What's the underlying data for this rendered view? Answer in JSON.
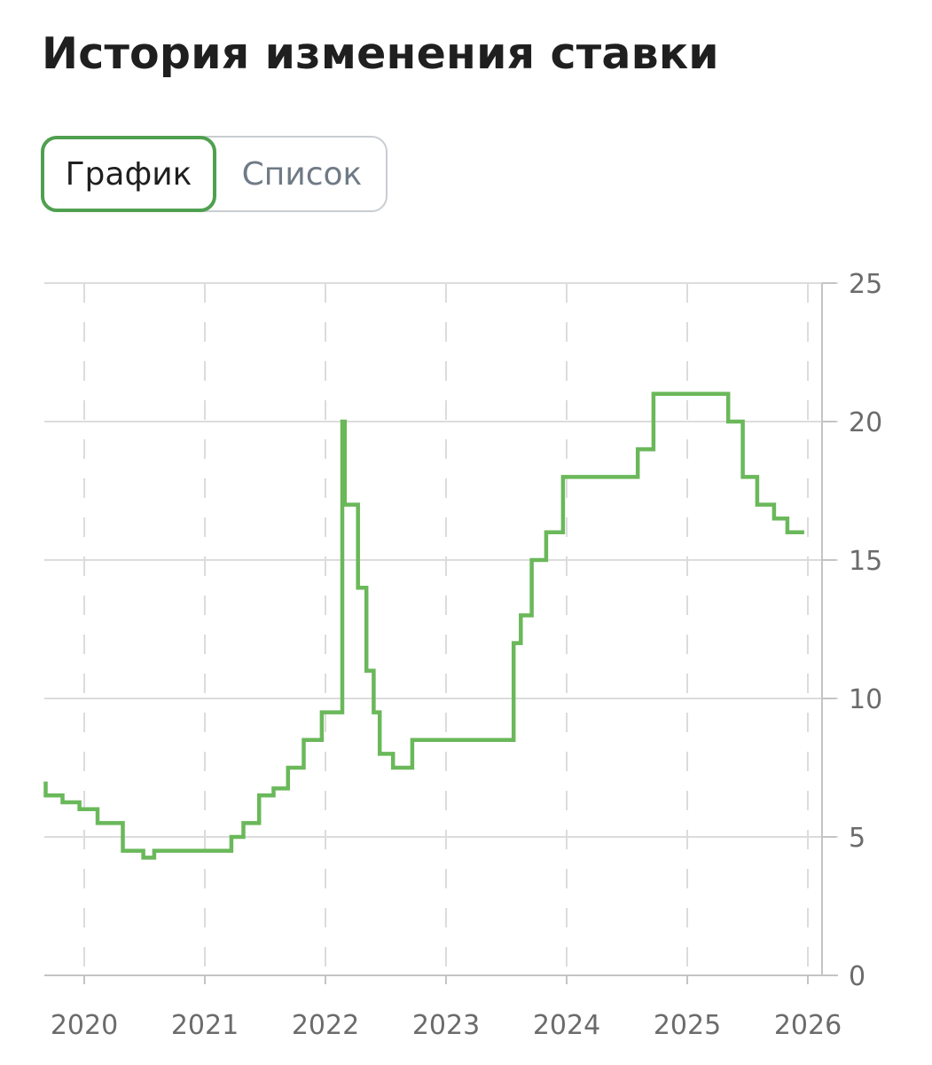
{
  "page": {
    "title": "История изменения ставки"
  },
  "toggle": {
    "options": [
      {
        "label": "График",
        "active": true
      },
      {
        "label": "Список",
        "active": false
      }
    ]
  },
  "colors": {
    "accent": "#4fa04f",
    "line": "#6ab85a",
    "grid": "#dcdcdc",
    "text": "#1f1f1f",
    "muted": "#6f7a86"
  },
  "chart_data": {
    "type": "line",
    "step": true,
    "xlim": [
      2019.68,
      2025.97
    ],
    "ylim": [
      0,
      25
    ],
    "x_ticks": [
      2020,
      2021,
      2022,
      2023,
      2024,
      2025,
      2026
    ],
    "x_tick_labels": [
      "2020",
      "2021",
      "2022",
      "2023",
      "2024",
      "2025",
      "2026"
    ],
    "y_ticks": [
      0,
      5,
      10,
      15,
      20,
      25
    ],
    "y_tick_labels": [
      "0",
      "5",
      "10",
      "15",
      "20",
      "25"
    ],
    "y_axis_side": "right",
    "grid": {
      "horizontal": "solid",
      "vertical": "dashed"
    },
    "series": [
      {
        "points": [
          [
            2019.68,
            7.0
          ],
          [
            2019.68,
            6.5
          ],
          [
            2019.82,
            6.25
          ],
          [
            2019.96,
            6.0
          ],
          [
            2020.11,
            5.5
          ],
          [
            2020.32,
            4.5
          ],
          [
            2020.49,
            4.25
          ],
          [
            2020.58,
            4.5
          ],
          [
            2021.22,
            5.0
          ],
          [
            2021.32,
            5.5
          ],
          [
            2021.45,
            6.5
          ],
          [
            2021.57,
            6.75
          ],
          [
            2021.69,
            7.5
          ],
          [
            2021.82,
            8.5
          ],
          [
            2021.97,
            9.5
          ],
          [
            2022.14,
            20.0
          ],
          [
            2022.16,
            17.0
          ],
          [
            2022.27,
            14.0
          ],
          [
            2022.34,
            11.0
          ],
          [
            2022.4,
            9.5
          ],
          [
            2022.45,
            8.0
          ],
          [
            2022.56,
            7.5
          ],
          [
            2022.72,
            8.5
          ],
          [
            2023.56,
            12.0
          ],
          [
            2023.62,
            13.0
          ],
          [
            2023.71,
            15.0
          ],
          [
            2023.83,
            16.0
          ],
          [
            2023.97,
            18.0
          ],
          [
            2024.59,
            19.0
          ],
          [
            2024.72,
            21.0
          ],
          [
            2025.34,
            20.0
          ],
          [
            2025.46,
            18.0
          ],
          [
            2025.58,
            17.0
          ],
          [
            2025.72,
            16.5
          ],
          [
            2025.83,
            16.0
          ],
          [
            2025.97,
            16.0
          ]
        ]
      }
    ]
  }
}
